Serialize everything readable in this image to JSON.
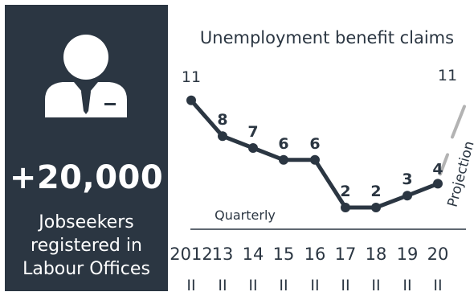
{
  "panel": {
    "value": "+20,000",
    "caption_lines": [
      "Jobseekers",
      "registered in",
      "Labour Offices"
    ],
    "background": "#2b3642",
    "icon": "person-in-suit-icon"
  },
  "chart_data": {
    "type": "line",
    "title": "Unemployment benefit claims",
    "subtitle": "Quarterly",
    "x": [
      "2012",
      "13",
      "14",
      "15",
      "16",
      "17",
      "18",
      "19",
      "20"
    ],
    "quarter_labels": [
      "II",
      "II",
      "II",
      "II",
      "II",
      "II",
      "II",
      "II",
      "II"
    ],
    "series": [
      {
        "values": [
          11,
          8,
          7,
          6,
          6,
          2,
          2,
          3,
          4
        ],
        "labels": [
          "11",
          "8",
          "7",
          "6",
          "6",
          "2",
          "2",
          "3",
          "4"
        ],
        "color": "#2b3642"
      }
    ],
    "projection": {
      "label": "Projection",
      "value_label": "11",
      "color": "#b3b3b3"
    },
    "xlabel": "",
    "ylabel": ""
  }
}
